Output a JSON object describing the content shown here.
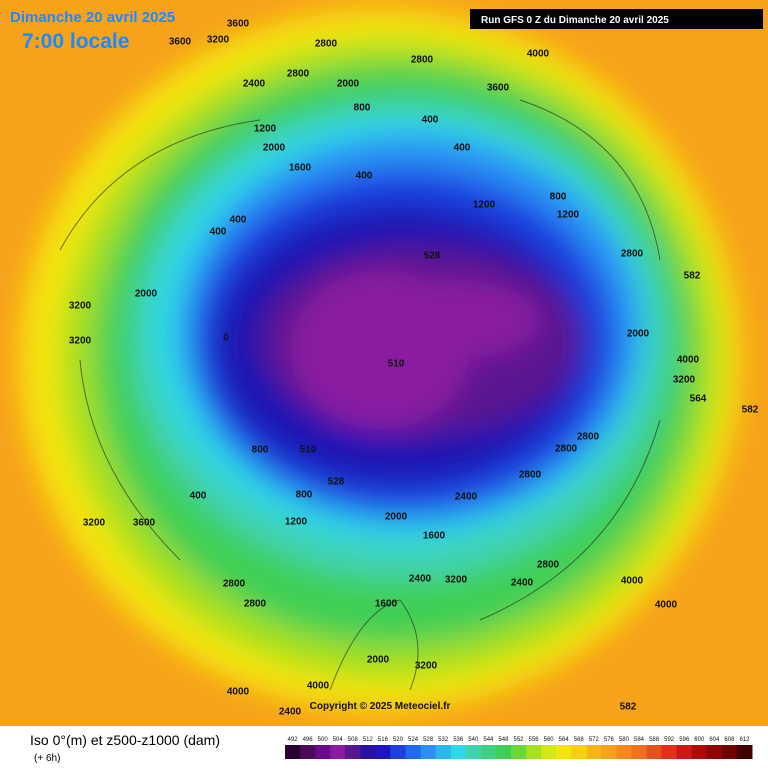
{
  "header": {
    "date": "Dimanche 20 avril 2025",
    "time": "7:00 locale",
    "run": "Run GFS 0 Z du Dimanche 20 avril 2025"
  },
  "footer": {
    "title": "Iso 0°(m) et z500-z1000 (dam)",
    "subtitle": "(+ 6h)",
    "copyright": "Copyright © 2025 Meteociel.fr"
  },
  "scale": {
    "values": [
      492,
      496,
      500,
      504,
      508,
      512,
      516,
      520,
      524,
      528,
      532,
      536,
      540,
      544,
      548,
      552,
      556,
      560,
      564,
      568,
      572,
      576,
      580,
      584,
      588,
      592,
      596,
      600,
      604,
      608,
      612
    ],
    "colors": [
      "#2a0033",
      "#4a0a5a",
      "#6a0a8a",
      "#8a1aa0",
      "#5a1590",
      "#2a10a0",
      "#1a17c0",
      "#1f40e0",
      "#1f6af0",
      "#2a90f5",
      "#2db5f0",
      "#2dd8e6",
      "#3fd3b0",
      "#3fcf80",
      "#3fcf54",
      "#6ad83a",
      "#a6e01f",
      "#d0e815",
      "#f5e609",
      "#f7d010",
      "#f7b515",
      "#f7a21b",
      "#f58a1b",
      "#f0701b",
      "#e8501b",
      "#e03018",
      "#d01515",
      "#b00a0a",
      "#900505",
      "#700000",
      "#400000"
    ]
  },
  "map_labels": [
    "3600",
    "3600",
    "3200",
    "2800",
    "2800",
    "2400",
    "2800",
    "2000",
    "3600",
    "4000",
    "800",
    "400",
    "1200",
    "2000",
    "1600",
    "400",
    "400",
    "1200",
    "800",
    "1200",
    "2800",
    "582",
    "2000",
    "4000",
    "3200",
    "564",
    "528",
    "510",
    "510",
    "528",
    "0",
    "400",
    "400",
    "800",
    "2800",
    "2800",
    "2800",
    "2400",
    "2000",
    "1600",
    "2800",
    "2800",
    "3600",
    "3200",
    "4000",
    "4000",
    "4000",
    "2400",
    "2400",
    "2800",
    "3200",
    "1600",
    "2000",
    "3200",
    "582",
    "582",
    "3200",
    "3200",
    "2000",
    "400",
    "1200",
    "800",
    "4000",
    "2400"
  ]
}
